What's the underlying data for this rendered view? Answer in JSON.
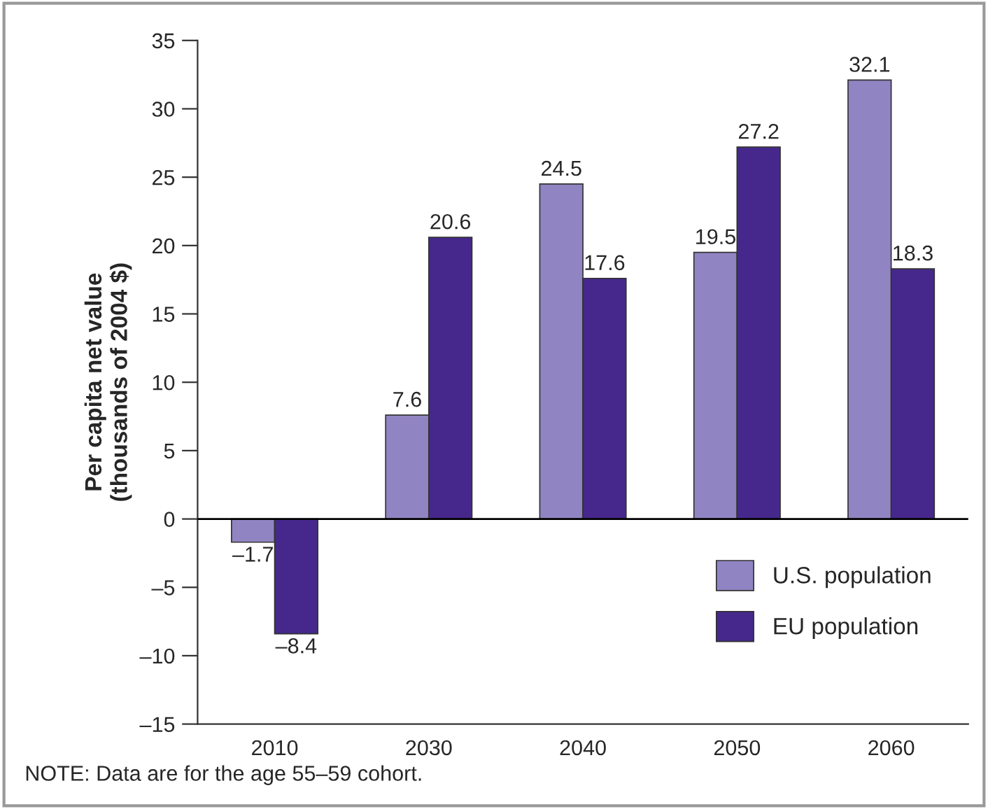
{
  "chart_data": {
    "type": "bar",
    "ylabel": "Per capita net value\n(thousands of 2004 $)",
    "categories": [
      "2010",
      "2030",
      "2040",
      "2050",
      "2060"
    ],
    "series": [
      {
        "name": "U.S. population",
        "color": "#9184c2",
        "values": [
          -1.7,
          7.6,
          24.5,
          19.5,
          32.1
        ],
        "value_labels": [
          "–1.7",
          "7.6",
          "24.5",
          "19.5",
          "32.1"
        ]
      },
      {
        "name": "EU population",
        "color": "#46288c",
        "values": [
          -8.4,
          20.6,
          17.6,
          27.2,
          18.3
        ],
        "value_labels": [
          "–8.4",
          "20.6",
          "17.6",
          "27.2",
          "18.3"
        ]
      }
    ],
    "ylim": [
      -15,
      35
    ],
    "yticks": [
      {
        "value": -15,
        "label": "–15"
      },
      {
        "value": -10,
        "label": "–10"
      },
      {
        "value": -5,
        "label": "–5"
      },
      0,
      5,
      10,
      15,
      20,
      25,
      30,
      35
    ],
    "ref_lines": [
      {
        "axis": "y",
        "value": 0,
        "color": "#000000"
      }
    ],
    "grid": false,
    "legend": "bottom right",
    "annotations": [
      "NOTE: Data are for the age 55–59 cohort."
    ]
  }
}
